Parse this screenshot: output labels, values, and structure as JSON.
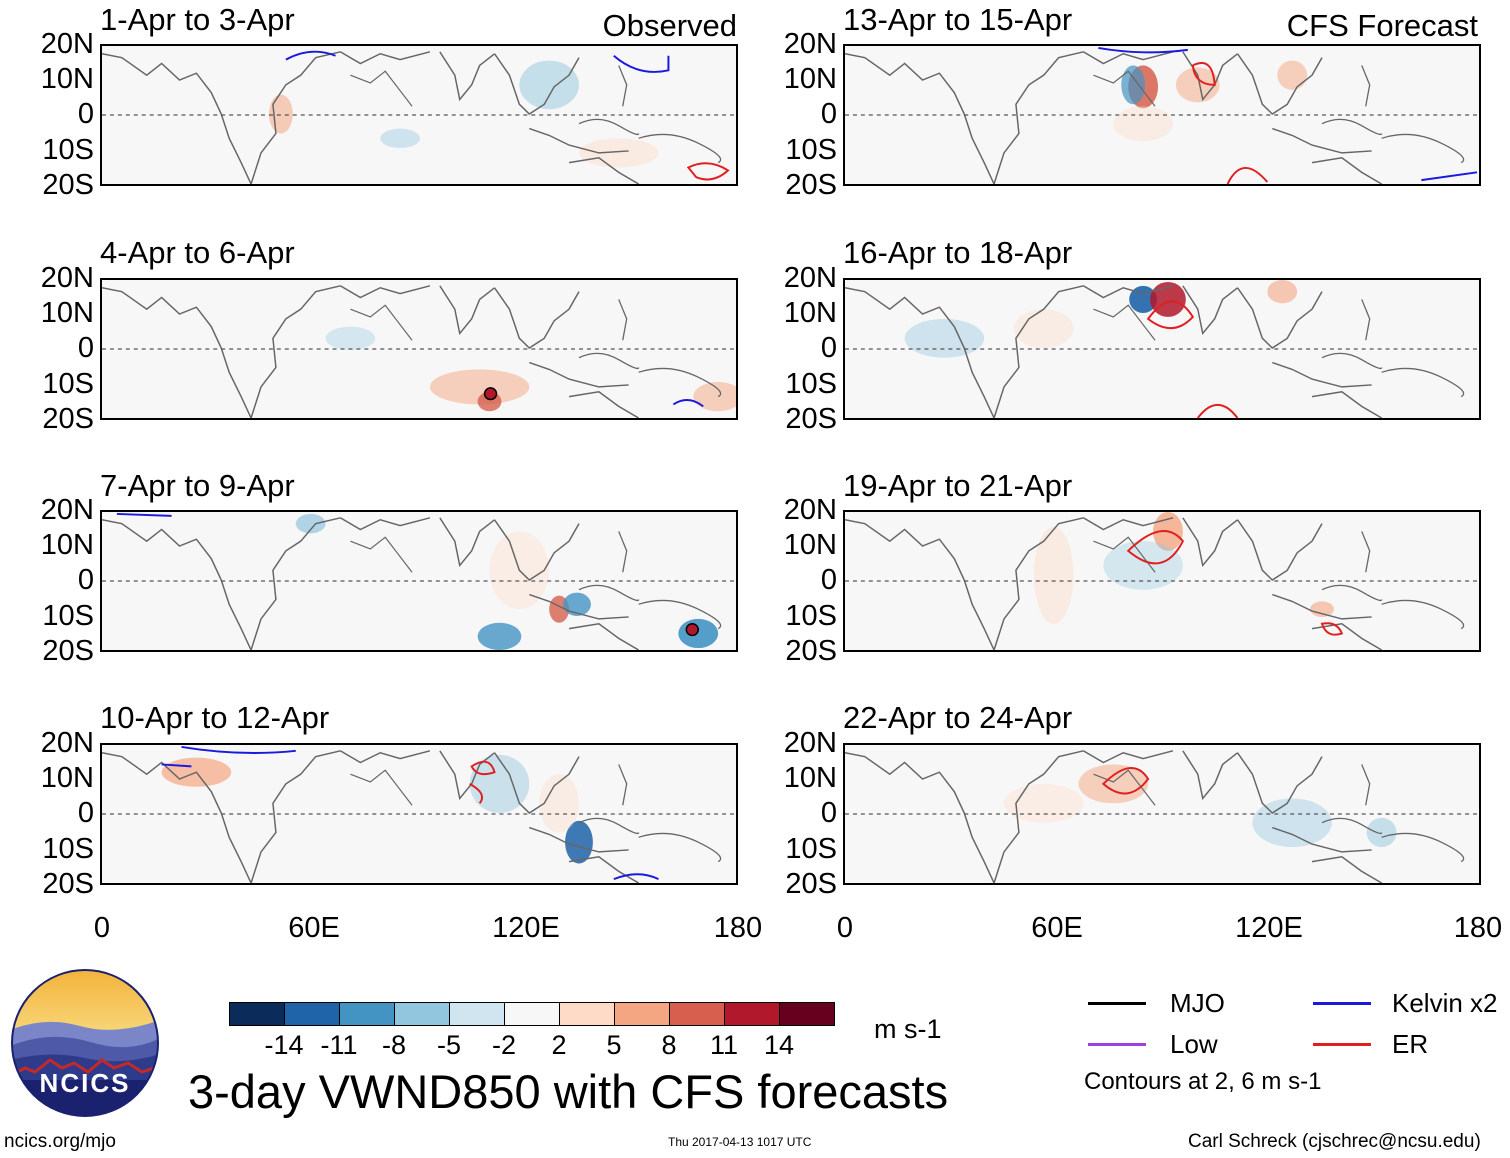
{
  "panels": {
    "left": [
      {
        "title": "1-Apr to 3-Apr",
        "tag": "Observed"
      },
      {
        "title": "4-Apr to 6-Apr",
        "tag": ""
      },
      {
        "title": "7-Apr to 9-Apr",
        "tag": ""
      },
      {
        "title": "10-Apr to 12-Apr",
        "tag": ""
      }
    ],
    "right": [
      {
        "title": "13-Apr to 15-Apr",
        "tag": "CFS Forecast"
      },
      {
        "title": "16-Apr to 18-Apr",
        "tag": ""
      },
      {
        "title": "19-Apr to 21-Apr",
        "tag": ""
      },
      {
        "title": "22-Apr to 24-Apr",
        "tag": ""
      }
    ]
  },
  "axes": {
    "lat_labels": [
      "20N",
      "10N",
      "0",
      "10S",
      "20S"
    ],
    "lon_labels": [
      "0",
      "60E",
      "120E",
      "180"
    ]
  },
  "colorbar": {
    "colors": [
      "#0b2c5b",
      "#1f63a8",
      "#4393c3",
      "#92c5de",
      "#d1e5f0",
      "#f7f7f7",
      "#fddbc7",
      "#f4a582",
      "#d6604d",
      "#b2182b",
      "#67001f"
    ],
    "labels": [
      "-14",
      "-11",
      "-8",
      "-5",
      "-2",
      "2",
      "5",
      "8",
      "11",
      "14"
    ],
    "units": "m s-1"
  },
  "title": "3-day VWND850 with CFS forecasts",
  "legend": {
    "items": [
      {
        "label": "MJO",
        "color": "#000000"
      },
      {
        "label": "Kelvin x2",
        "color": "#1a1adf"
      },
      {
        "label": "Low",
        "color": "#a040e0"
      },
      {
        "label": "ER",
        "color": "#e02020"
      }
    ],
    "note": "Contours at 2, 6 m s-1"
  },
  "logo": {
    "text": "NCICS"
  },
  "footer": {
    "url": "ncics.org/mjo",
    "timestamp": "Thu 2017-04-13 1017 UTC",
    "credit": "Carl Schreck (cjschrec@ncsu.edu)"
  }
}
